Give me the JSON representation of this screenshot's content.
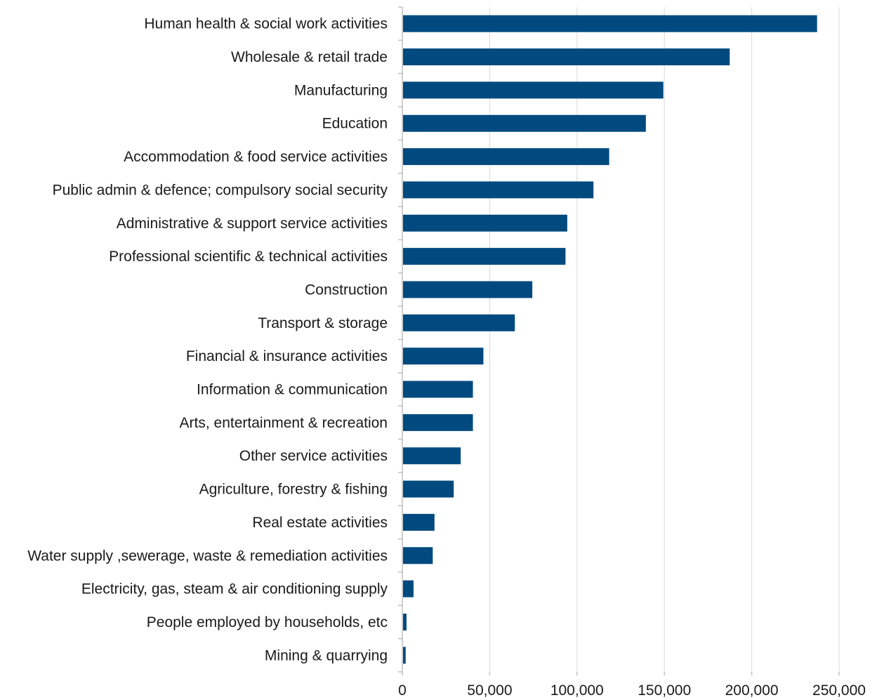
{
  "chart_data": {
    "type": "bar",
    "orientation": "horizontal",
    "title": "",
    "xlabel": "",
    "ylabel": "",
    "categories": [
      "Human health & social work activities",
      "Wholesale & retail trade",
      "Manufacturing",
      "Education",
      "Accommodation & food service activities",
      "Public admin & defence; compulsory social security",
      "Administrative & support service activities",
      "Professional scientific & technical activities",
      "Construction",
      "Transport & storage",
      "Financial & insurance activities",
      "Information & communication",
      "Arts, entertainment & recreation",
      "Other service activities",
      "Agriculture, forestry & fishing",
      "Real estate activities",
      "Water supply ,sewerage, waste & remediation activities",
      "Electricity, gas, steam & air conditioning supply",
      "People employed by households, etc",
      "Mining & quarrying"
    ],
    "values": [
      237000,
      187000,
      149000,
      139000,
      118000,
      109000,
      94000,
      93000,
      74000,
      64000,
      46000,
      40000,
      40000,
      33000,
      29000,
      18000,
      17000,
      6000,
      2000,
      1500
    ],
    "xlim": [
      0,
      250000
    ],
    "x_ticks": [
      0,
      50000,
      100000,
      150000,
      200000,
      250000
    ],
    "x_tick_labels": [
      "0",
      "50,000",
      "100,000",
      "150,000",
      "200,000",
      "250,000"
    ],
    "grid": "vertical",
    "legend": "none",
    "bar_color": "#004a7f"
  }
}
